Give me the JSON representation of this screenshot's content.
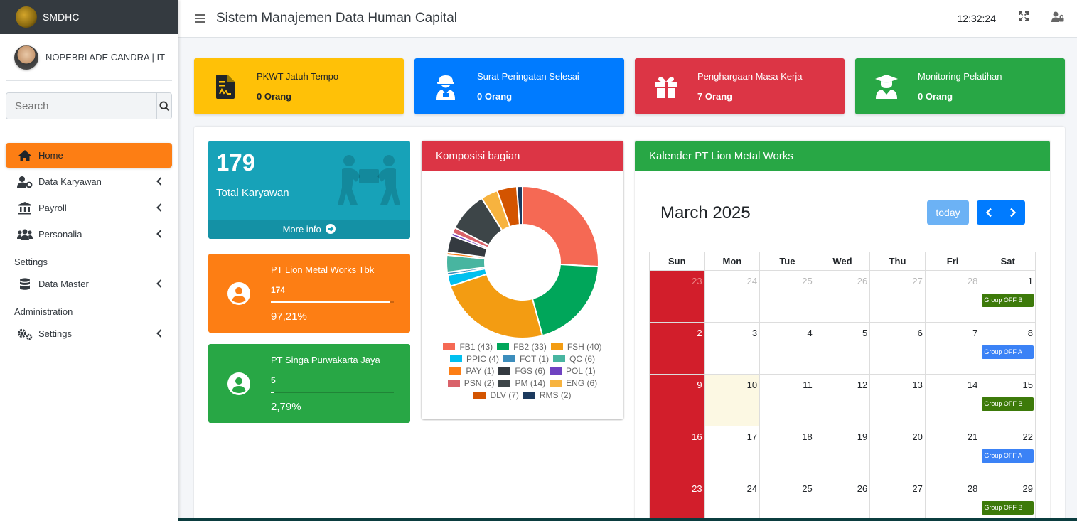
{
  "brand": {
    "name": "SMDHC"
  },
  "user": {
    "name": "NOPEBRI ADE CANDRA | IT"
  },
  "search": {
    "placeholder": "Search"
  },
  "nav": {
    "home": "Home",
    "data_karyawan": "Data Karyawan",
    "payroll": "Payroll",
    "personalia": "Personalia",
    "settings_header": "Settings",
    "data_master": "Data Master",
    "admin_header": "Administration",
    "settings": "Settings"
  },
  "header": {
    "title": "Sistem Manajemen Data Human Capital",
    "clock": "12:32:24"
  },
  "info_boxes": [
    {
      "title": "PKWT Jatuh Tempo",
      "value": "0 Orang",
      "color": "#ffc107",
      "icon": "contract-icon"
    },
    {
      "title": "Surat Peringatan Selesai",
      "value": "0 Orang",
      "color": "#007bff",
      "icon": "worker-icon"
    },
    {
      "title": "Penghargaan Masa Kerja",
      "value": "7 Orang",
      "color": "#dc3545",
      "icon": "gift-icon"
    },
    {
      "title": "Monitoring Pelatihan",
      "value": "0 Orang",
      "color": "#28a745",
      "icon": "graduate-icon"
    }
  ],
  "total": {
    "number": "179",
    "label": "Total Karyawan",
    "more": "More info"
  },
  "companies": [
    {
      "name": "PT Lion Metal Works Tbk",
      "count": "174",
      "percent": "97,21%",
      "fraction": 0.9721,
      "color": "#fd7e14"
    },
    {
      "name": "PT Singa Purwakarta Jaya",
      "count": "5",
      "percent": "2,79%",
      "fraction": 0.0279,
      "color": "#28a745"
    }
  ],
  "pie_card": {
    "title": "Komposisi bagian",
    "color": "#dc3545"
  },
  "chart_data": {
    "type": "pie",
    "title": "",
    "donut": true,
    "slices": [
      {
        "label": "FB1",
        "value": 43,
        "color": "#f56954"
      },
      {
        "label": "FB2",
        "value": 33,
        "color": "#00a65a"
      },
      {
        "label": "FSH",
        "value": 40,
        "color": "#f39c12"
      },
      {
        "label": "PPIC",
        "value": 4,
        "color": "#00c0ef"
      },
      {
        "label": "FCT",
        "value": 1,
        "color": "#3c8dbc"
      },
      {
        "label": "QC",
        "value": 6,
        "color": "#48b5a0"
      },
      {
        "label": "PAY",
        "value": 1,
        "color": "#fd7e14"
      },
      {
        "label": "FGS",
        "value": 6,
        "color": "#343a40"
      },
      {
        "label": "POL",
        "value": 1,
        "color": "#6f42c1"
      },
      {
        "label": "PSN",
        "value": 2,
        "color": "#d9626a"
      },
      {
        "label": "PM",
        "value": 14,
        "color": "#3d4548"
      },
      {
        "label": "ENG",
        "value": 6,
        "color": "#f7b33f"
      },
      {
        "label": "DLV",
        "value": 7,
        "color": "#d35400"
      },
      {
        "label": "RMS",
        "value": 2,
        "color": "#1c3a5e"
      }
    ],
    "legend_rows": [
      [
        "FB1 (43)",
        "FB2 (33)",
        "FSH (40)"
      ],
      [
        "PPIC (4)",
        "FCT (1)",
        "QC (6)"
      ],
      [
        "PAY (1)",
        "FGS (6)",
        "POL (1)"
      ],
      [
        "PSN (2)",
        "PM (14)",
        "ENG (6)"
      ],
      [
        "DLV (7)",
        "RMS (2)"
      ]
    ]
  },
  "calendar": {
    "card_title": "Kalender PT Lion Metal Works",
    "header_color": "#28a745",
    "month": "March 2025",
    "today_label": "today",
    "weekdays": [
      "Sun",
      "Mon",
      "Tue",
      "Wed",
      "Thu",
      "Fri",
      "Sat"
    ],
    "weeks": [
      [
        "23",
        "24",
        "25",
        "26",
        "27",
        "28",
        "1"
      ],
      [
        "2",
        "3",
        "4",
        "5",
        "6",
        "7",
        "8"
      ],
      [
        "9",
        "10",
        "11",
        "12",
        "13",
        "14",
        "15"
      ],
      [
        "16",
        "17",
        "18",
        "19",
        "20",
        "21",
        "22"
      ],
      [
        "23",
        "24",
        "25",
        "26",
        "27",
        "28",
        "29"
      ]
    ],
    "events": {
      "e1": {
        "label": "Group OFF B",
        "color": "#3d7a0a"
      },
      "e8": {
        "label": "Group OFF A",
        "color": "#3b82f6"
      },
      "e15": {
        "label": "Group OFF B",
        "color": "#3d7a0a"
      },
      "e22": {
        "label": "Group OFF A",
        "color": "#3b82f6"
      },
      "e29": {
        "label": "Group OFF B",
        "color": "#3d7a0a"
      }
    }
  }
}
